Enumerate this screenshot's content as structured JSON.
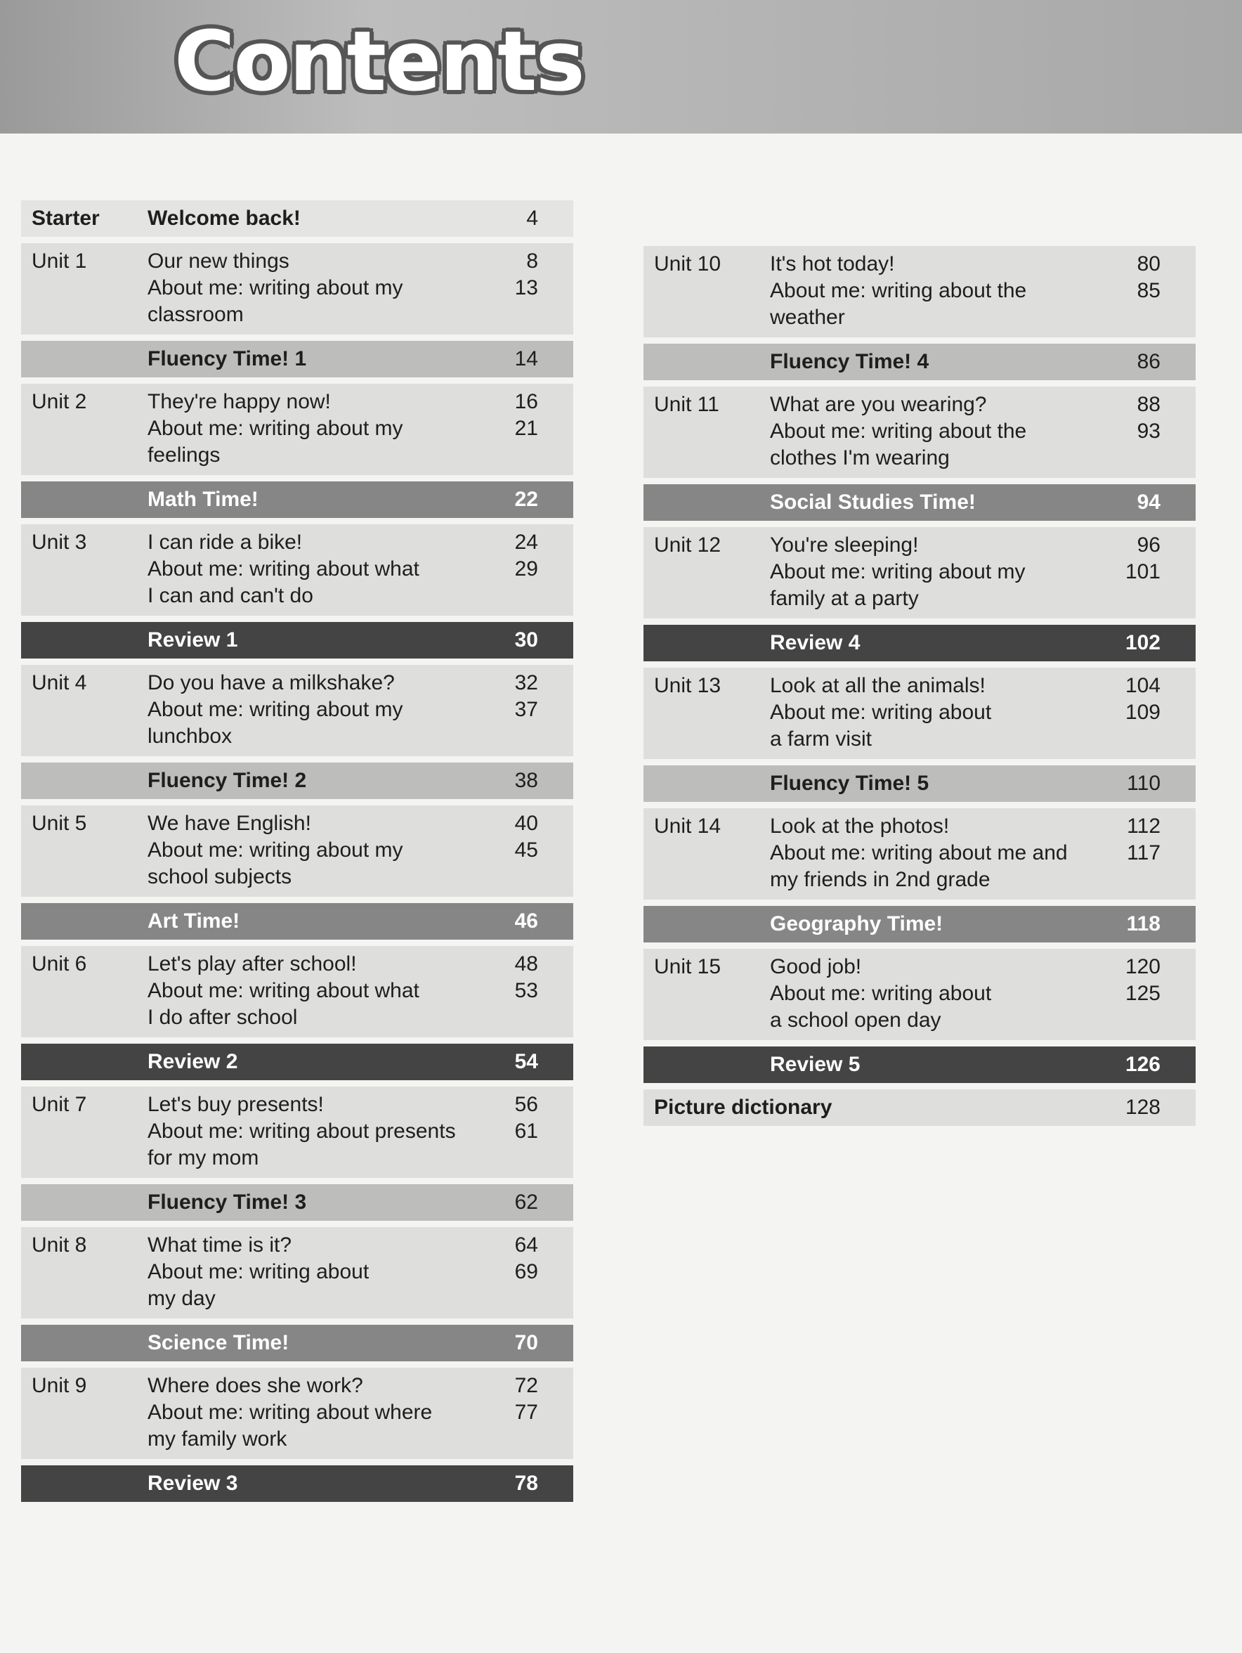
{
  "title": "Contents",
  "left": [
    {
      "type": "starter",
      "label": "Starter",
      "title": "Welcome back!",
      "pages": [
        "4"
      ]
    },
    {
      "type": "unit",
      "label": "Unit 1",
      "lines": [
        "Our new things",
        "About me: writing about my",
        "classroom"
      ],
      "pages": [
        "8",
        "13"
      ]
    },
    {
      "type": "fluency",
      "title": "Fluency Time! 1",
      "pages": [
        "14"
      ]
    },
    {
      "type": "unit",
      "label": "Unit 2",
      "lines": [
        "They're happy now!",
        "About me: writing about my",
        "feelings"
      ],
      "pages": [
        "16",
        "21"
      ]
    },
    {
      "type": "subject",
      "title": "Math Time!",
      "pages": [
        "22"
      ]
    },
    {
      "type": "unit",
      "label": "Unit 3",
      "lines": [
        "I can ride a bike!",
        "About me: writing about what",
        "I can and can't do"
      ],
      "pages": [
        "24",
        "29"
      ]
    },
    {
      "type": "review",
      "title": "Review 1",
      "pages": [
        "30"
      ]
    },
    {
      "type": "unit",
      "label": "Unit 4",
      "lines": [
        "Do you have a milkshake?",
        "About me: writing about my",
        "lunchbox"
      ],
      "pages": [
        "32",
        "37"
      ]
    },
    {
      "type": "fluency",
      "title": "Fluency Time! 2",
      "pages": [
        "38"
      ]
    },
    {
      "type": "unit",
      "label": "Unit 5",
      "lines": [
        "We have English!",
        "About me: writing about my",
        "school subjects"
      ],
      "pages": [
        "40",
        "45"
      ]
    },
    {
      "type": "subject",
      "title": "Art Time!",
      "pages": [
        "46"
      ]
    },
    {
      "type": "unit",
      "label": "Unit 6",
      "lines": [
        "Let's play after school!",
        "About me: writing about what",
        "I do after school"
      ],
      "pages": [
        "48",
        "53"
      ]
    },
    {
      "type": "review",
      "title": "Review 2",
      "pages": [
        "54"
      ]
    },
    {
      "type": "unit",
      "label": "Unit 7",
      "lines": [
        "Let's buy presents!",
        "About me: writing about presents",
        "for my mom"
      ],
      "pages": [
        "56",
        "61"
      ]
    },
    {
      "type": "fluency",
      "title": "Fluency Time! 3",
      "pages": [
        "62"
      ]
    },
    {
      "type": "unit",
      "label": "Unit 8",
      "lines": [
        "What time is it?",
        "About me: writing about",
        "my day"
      ],
      "pages": [
        "64",
        "69"
      ]
    },
    {
      "type": "subject",
      "title": "Science Time!",
      "pages": [
        "70"
      ]
    },
    {
      "type": "unit",
      "label": "Unit 9",
      "lines": [
        "Where does she work?",
        "About me: writing about where",
        "my family work"
      ],
      "pages": [
        "72",
        "77"
      ]
    },
    {
      "type": "review",
      "title": "Review 3",
      "pages": [
        "78"
      ]
    }
  ],
  "right": [
    {
      "type": "unit",
      "label": "Unit 10",
      "lines": [
        "It's hot today!",
        "About me: writing about the",
        "weather"
      ],
      "pages": [
        "80",
        "85"
      ]
    },
    {
      "type": "fluency",
      "title": "Fluency Time! 4",
      "pages": [
        "86"
      ]
    },
    {
      "type": "unit",
      "label": "Unit 11",
      "lines": [
        "What are you wearing?",
        "About me: writing about the",
        "clothes I'm wearing"
      ],
      "pages": [
        "88",
        "93"
      ]
    },
    {
      "type": "subject",
      "title": "Social Studies Time!",
      "pages": [
        "94"
      ]
    },
    {
      "type": "unit",
      "label": "Unit 12",
      "lines": [
        "You're sleeping!",
        "About me: writing about my",
        "family at a party"
      ],
      "pages": [
        "96",
        "101"
      ]
    },
    {
      "type": "review",
      "title": "Review 4",
      "pages": [
        "102"
      ]
    },
    {
      "type": "unit",
      "label": "Unit 13",
      "lines": [
        "Look at all the animals!",
        "About me: writing about",
        "a farm visit"
      ],
      "pages": [
        "104",
        "109"
      ]
    },
    {
      "type": "fluency",
      "title": "Fluency Time! 5",
      "pages": [
        "110"
      ]
    },
    {
      "type": "unit",
      "label": "Unit 14",
      "lines": [
        "Look at the photos!",
        "About me: writing about me and",
        "my friends in 2nd grade"
      ],
      "pages": [
        "112",
        "117"
      ]
    },
    {
      "type": "subject",
      "title": "Geography Time!",
      "pages": [
        "118"
      ]
    },
    {
      "type": "unit",
      "label": "Unit 15",
      "lines": [
        "Good job!",
        "About me: writing about",
        "a school open day"
      ],
      "pages": [
        "120",
        "125"
      ]
    },
    {
      "type": "review",
      "title": "Review 5",
      "pages": [
        "126"
      ]
    },
    {
      "type": "picture",
      "label": "Picture dictionary",
      "pages": [
        "128"
      ]
    }
  ]
}
